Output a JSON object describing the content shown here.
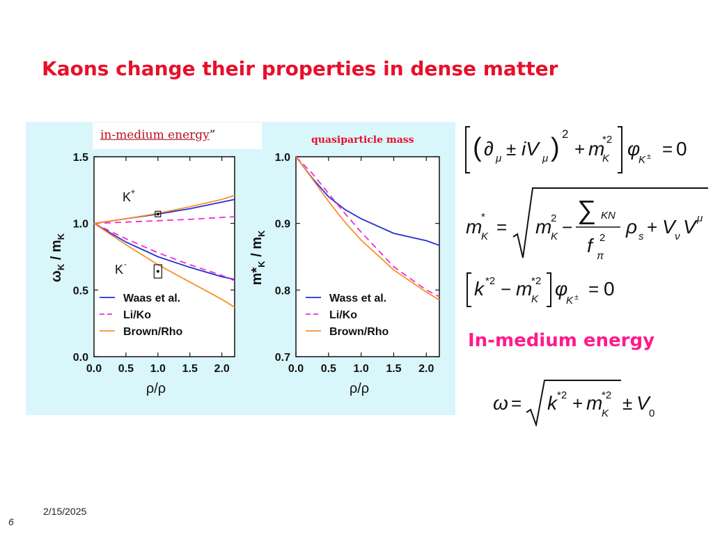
{
  "slide": {
    "title": "Kaons change their properties in dense matter",
    "date": "2/15/2025",
    "number": "6"
  },
  "figure": {
    "label_left_underlined": "in-medium energy",
    "label_left_tail": "”",
    "label_right": "quasiparticle mass"
  },
  "colors": {
    "title": "#e8102a",
    "panel_bg": "#d9f6fb",
    "waas": "#1f2fd6",
    "liko": "#f22ad4",
    "brown": "#f5912a",
    "energy_heading": "#ff1a8c"
  },
  "chart_data": [
    {
      "type": "line",
      "title": "",
      "xlabel": "ρ/ρ0",
      "ylabel": "ωK / mK",
      "xlim": [
        0,
        2.2
      ],
      "ylim": [
        0,
        1.5
      ],
      "xticks": [
        "0.0",
        "0.5",
        "1.0",
        "1.5",
        "2.0"
      ],
      "yticks": [
        "0.0",
        "0.5",
        "1.0",
        "1.5"
      ],
      "annotations": [
        "K+",
        "K-"
      ],
      "legend": "lower-left",
      "series": [
        {
          "name": "Waas et al.",
          "color": "#1f2fd6",
          "dash": "solid",
          "x": [
            0,
            0.5,
            1.0,
            1.5,
            2.0,
            2.2
          ],
          "y": [
            1.0,
            1.035,
            1.07,
            1.11,
            1.16,
            1.18
          ]
        },
        {
          "name": "Li/Ko",
          "color": "#f22ad4",
          "dash": "dashed",
          "x": [
            0,
            0.5,
            1.0,
            1.5,
            2.0,
            2.2
          ],
          "y": [
            1.0,
            1.01,
            1.02,
            1.03,
            1.045,
            1.05
          ]
        },
        {
          "name": "Brown/Rho",
          "color": "#f5912a",
          "dash": "solid",
          "x": [
            0,
            0.5,
            1.0,
            1.5,
            2.0,
            2.2
          ],
          "y": [
            1.0,
            1.035,
            1.075,
            1.125,
            1.18,
            1.21
          ]
        },
        {
          "name": "Waas et al.",
          "color": "#1f2fd6",
          "dash": "solid",
          "x": [
            0,
            0.5,
            1.0,
            1.5,
            2.0,
            2.2
          ],
          "y": [
            1.0,
            0.86,
            0.75,
            0.67,
            0.6,
            0.58
          ]
        },
        {
          "name": "Li/Ko",
          "color": "#f22ad4",
          "dash": "dashed",
          "x": [
            0,
            0.5,
            1.0,
            1.5,
            2.0,
            2.2
          ],
          "y": [
            1.0,
            0.885,
            0.78,
            0.69,
            0.61,
            0.57
          ]
        },
        {
          "name": "Brown/Rho",
          "color": "#f5912a",
          "dash": "solid",
          "x": [
            0,
            0.5,
            1.0,
            1.5,
            2.0,
            2.2
          ],
          "y": [
            1.0,
            0.84,
            0.69,
            0.56,
            0.43,
            0.37
          ]
        }
      ],
      "points": [
        {
          "label": "K+ data",
          "x": 1.0,
          "y": 1.07,
          "yerr": 0.01,
          "xerr": 0.02
        },
        {
          "label": "K- data",
          "x": 1.0,
          "y": 0.64,
          "yerr": 0.05,
          "xerr": 0.06
        }
      ]
    },
    {
      "type": "line",
      "title": "quasiparticle mass",
      "xlabel": "ρ/ρ0",
      "ylabel": "m*K / mK",
      "xlim": [
        0,
        2.2
      ],
      "ylim": [
        0.7,
        1.0
      ],
      "xticks": [
        "0.0",
        "0.5",
        "1.0",
        "1.5",
        "2.0"
      ],
      "yticks": [
        "0.7",
        "0.8",
        "0.9",
        "1.0"
      ],
      "legend": "lower-left",
      "series": [
        {
          "name": "Wass et al.",
          "color": "#1f2fd6",
          "dash": "solid",
          "x": [
            0,
            0.25,
            0.5,
            0.75,
            1.0,
            1.5,
            2.0,
            2.2
          ],
          "y": [
            1.0,
            0.968,
            0.94,
            0.921,
            0.907,
            0.885,
            0.874,
            0.867
          ]
        },
        {
          "name": "Li/Ko",
          "color": "#f22ad4",
          "dash": "dashed",
          "x": [
            0,
            0.25,
            0.5,
            0.75,
            1.0,
            1.5,
            2.0,
            2.2
          ],
          "y": [
            1.0,
            0.975,
            0.945,
            0.915,
            0.887,
            0.835,
            0.8,
            0.79
          ]
        },
        {
          "name": "Brown/Rho",
          "color": "#f5912a",
          "dash": "solid",
          "x": [
            0,
            0.25,
            0.5,
            0.75,
            1.0,
            1.5,
            2.0,
            2.2
          ],
          "y": [
            1.0,
            0.967,
            0.933,
            0.902,
            0.875,
            0.83,
            0.797,
            0.785
          ]
        }
      ]
    }
  ],
  "equations": {
    "eq1": "[(∂μ ± iVμ)² + m*K²] φK± = 0",
    "eq2": "m*K = √( mK² − ΣKN ρs / fπ² + VνVμ )",
    "eq3": "[k*² − m*K²] φK± = 0",
    "energy_heading": "In-medium energy",
    "eq4": "ω = √( k*² + m*K² ) ± V0"
  }
}
